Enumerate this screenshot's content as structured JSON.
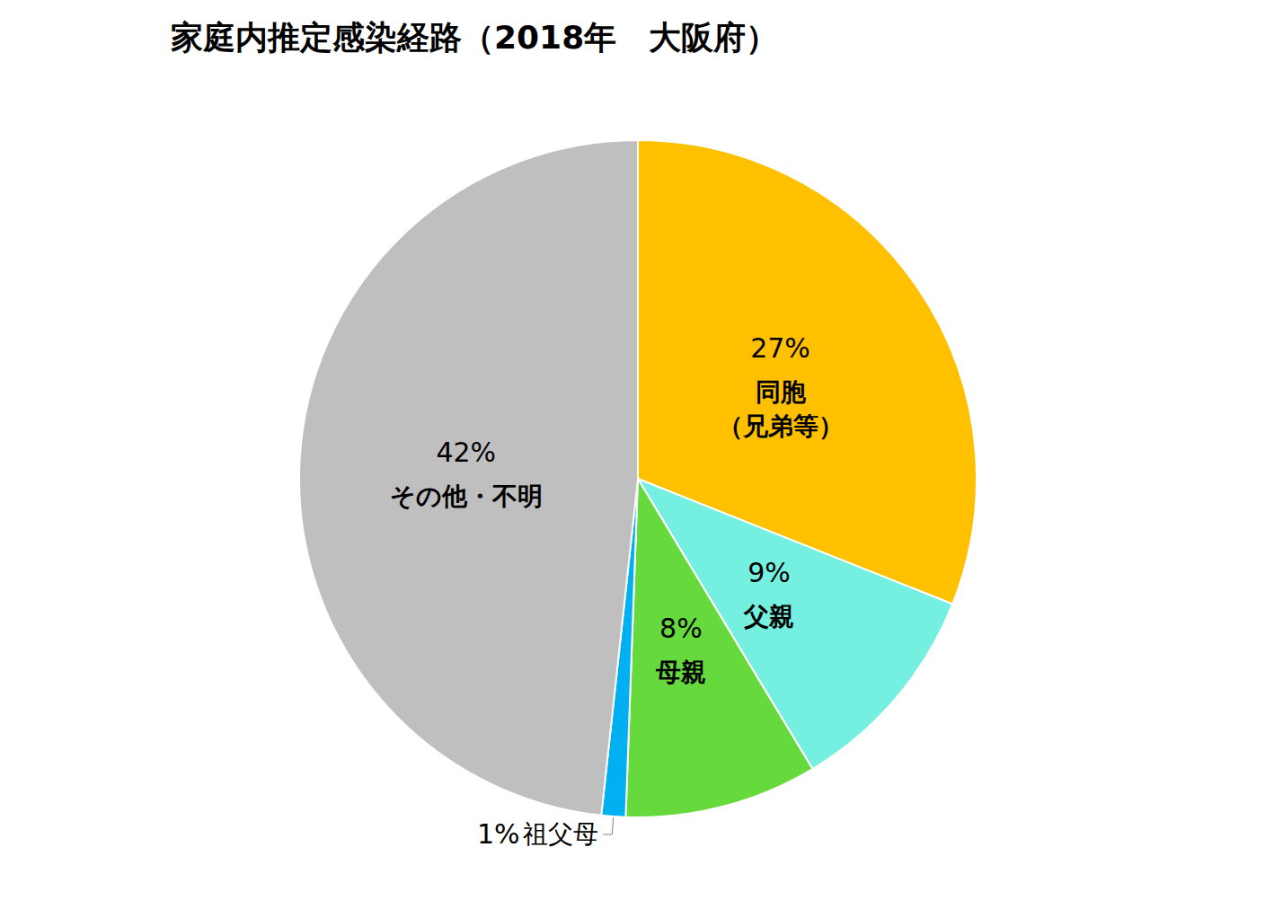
{
  "chart_data": {
    "type": "pie",
    "title": "家庭内推定感染経路（2018年　大阪府）",
    "categories": [
      "同胞\n（兄弟等）",
      "父親",
      "母親",
      "祖父母",
      "その他・不明"
    ],
    "values": [
      27,
      9,
      8,
      1,
      42
    ],
    "value_labels": [
      "27%",
      "9%",
      "8%",
      "1%",
      "42%"
    ],
    "colors": [
      "#FFC000",
      "#75F0E0",
      "#66D93D",
      "#00B0F0",
      "#BFBFBF"
    ],
    "data_labels": true
  }
}
